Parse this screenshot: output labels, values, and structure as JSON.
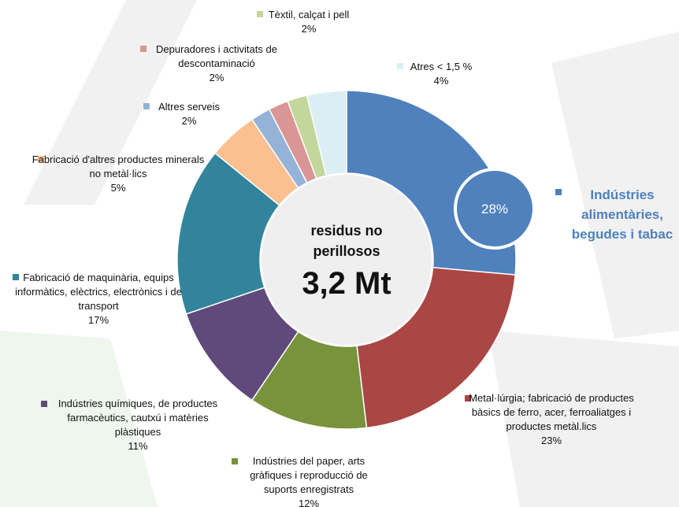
{
  "chart_data": {
    "type": "donut",
    "center_title": "residus no perillosos",
    "center_value": "3,2 Mt",
    "categories": [
      "Indústries alimentàries, begudes i tabac",
      "Metal·lúrgia; fabricació de productes bàsics de ferro, acer, ferroaliatges i productes metàl.lics",
      "Indústries del paper, arts gràfiques i reproducció de suports enregistrats",
      "Indústries químiques, de productes farmacèutics, cautxú i matèries plàstiques",
      "Fabricació de maquinària, equips informàtics, elèctrics, electrònics i de transport",
      "Fabricació d'altres productes minerals no metàl·lics",
      "Altres serveis",
      "Depuradores i activitats de descontaminació",
      "Tèxtil, calçat i pell",
      "Atres < 1,5 %"
    ],
    "values": [
      28,
      23,
      12,
      11,
      17,
      5,
      2,
      2,
      2,
      4
    ],
    "value_labels": [
      "28%",
      "23%",
      "12%",
      "11%",
      "17%",
      "5%",
      "2%",
      "2%",
      "2%",
      "4%"
    ],
    "colors": [
      "#4f81bd",
      "#aa4644",
      "#77933c",
      "#604a7b",
      "#31849b",
      "#fac090",
      "#95b3d7",
      "#d99694",
      "#c3d69b",
      "#dbeef4"
    ]
  }
}
